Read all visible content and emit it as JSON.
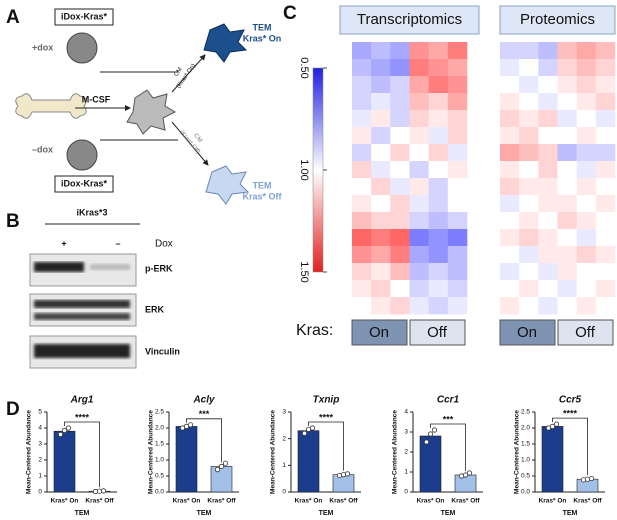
{
  "panel_a": {
    "letter": "A",
    "box_top": "iDox-Kras*",
    "plus_dox": "+dox",
    "tem_on": [
      "TEM",
      "Kras* On"
    ],
    "cm_on": [
      "CM",
      "(Kras* On)"
    ],
    "mcsf": "M-CSF",
    "minus_dox": "–dox",
    "cm_off": [
      "CM",
      "(Kras* Off)"
    ],
    "box_bottom": "iDox-Kras*",
    "tem_off": [
      "TEM",
      "Kras* Off"
    ]
  },
  "panel_b": {
    "letter": "B",
    "title": "iKras*3",
    "lanes": [
      "+",
      "–"
    ],
    "lane_label": "Dox",
    "bands": [
      "p-ERK",
      "ERK",
      "Vinculin"
    ]
  },
  "panel_c": {
    "letter": "C",
    "colorbar": {
      "lim": [
        0.5,
        1.5
      ],
      "ticks": [
        {
          "value": 0.5,
          "label": "0.50"
        },
        {
          "value": 1,
          "label": "1.00"
        },
        {
          "value": 1.5,
          "label": "1.50"
        }
      ]
    },
    "kras": {
      "label": "Kras:",
      "groups": [
        "On",
        "Off"
      ]
    },
    "heatmaps": [
      {
        "title": "Transcriptomics",
        "values": [
          [
            0.8,
            0.85,
            0.8,
            1.25,
            1.2,
            1.3
          ],
          [
            0.85,
            0.8,
            0.75,
            1.3,
            1.25,
            1.2
          ],
          [
            0.9,
            0.85,
            0.9,
            1.2,
            1.3,
            1.25
          ],
          [
            0.9,
            0.95,
            0.9,
            1.15,
            1.1,
            1.2
          ],
          [
            0.95,
            1.05,
            0.9,
            1.1,
            1.05,
            1.1
          ],
          [
            1.05,
            0.9,
            1.0,
            1.05,
            0.95,
            1.1
          ],
          [
            0.9,
            1.0,
            1.1,
            1.0,
            1.1,
            0.95
          ],
          [
            1.1,
            0.95,
            1.0,
            0.9,
            1.0,
            1.05
          ],
          [
            1.0,
            1.1,
            0.95,
            1.05,
            0.9,
            1.0
          ],
          [
            1.05,
            1.0,
            1.1,
            0.95,
            0.9,
            1.0
          ],
          [
            1.15,
            1.1,
            1.1,
            0.9,
            0.85,
            0.9
          ],
          [
            1.35,
            1.3,
            1.35,
            0.7,
            0.75,
            0.7
          ],
          [
            1.25,
            1.2,
            1.3,
            0.8,
            0.75,
            0.85
          ],
          [
            1.1,
            1.05,
            1.15,
            0.85,
            0.9,
            0.85
          ],
          [
            1.05,
            1.1,
            1.0,
            0.9,
            0.95,
            0.9
          ],
          [
            1.0,
            1.05,
            1.1,
            0.95,
            0.9,
            0.95
          ]
        ]
      },
      {
        "title": "Proteomics",
        "values": [
          [
            0.9,
            0.9,
            0.85,
            1.15,
            1.2,
            1.15
          ],
          [
            0.95,
            1.0,
            0.9,
            1.1,
            1.15,
            1.1
          ],
          [
            1.0,
            0.95,
            1.0,
            1.05,
            1.1,
            1.05
          ],
          [
            1.05,
            1.0,
            0.95,
            1.0,
            1.05,
            1.1
          ],
          [
            1.1,
            1.05,
            1.1,
            0.95,
            1.0,
            0.95
          ],
          [
            1.05,
            1.1,
            1.0,
            1.0,
            1.05,
            1.0
          ],
          [
            1.2,
            1.15,
            1.1,
            0.85,
            0.9,
            0.9
          ],
          [
            1.05,
            1.0,
            1.1,
            1.0,
            0.95,
            1.05
          ],
          [
            1.1,
            1.05,
            1.05,
            1.0,
            1.05,
            1.0
          ],
          [
            0.95,
            1.0,
            1.05,
            1.05,
            1.0,
            1.05
          ],
          [
            1.0,
            1.05,
            1.0,
            1.1,
            1.05,
            1.0
          ],
          [
            1.05,
            1.1,
            1.05,
            1.0,
            0.95,
            1.0
          ],
          [
            1.0,
            0.95,
            1.05,
            1.05,
            1.1,
            1.05
          ],
          [
            0.95,
            1.0,
            0.95,
            1.05,
            1.0,
            1.0
          ],
          [
            1.0,
            1.05,
            1.0,
            0.95,
            1.0,
            1.05
          ],
          [
            1.05,
            1.0,
            0.95,
            1.0,
            1.05,
            1.0
          ]
        ]
      }
    ]
  },
  "panel_d": {
    "letter": "D"
  },
  "chart_data": [
    {
      "type": "bar",
      "title": "Arg1",
      "ylabel": "Mean-Centered Abundance",
      "xlabel": "TEM",
      "categories": [
        "Kras* On",
        "Kras* Off"
      ],
      "values": [
        3.8,
        0.05
      ],
      "colors": [
        "#1c3d8c",
        "#a3c0e8"
      ],
      "points": [
        [
          3.6,
          3.85,
          4.0
        ],
        [
          0.03,
          0.05,
          0.07
        ]
      ],
      "ylim": [
        0,
        5
      ],
      "yticks": [
        0,
        1,
        2,
        3,
        4,
        5
      ],
      "annotation": "****"
    },
    {
      "type": "bar",
      "title": "Acly",
      "ylabel": "Mean-Centered Abundance",
      "xlabel": "TEM",
      "categories": [
        "Kras* On",
        "Kras* Off"
      ],
      "values": [
        2.05,
        0.8
      ],
      "colors": [
        "#1c3d8c",
        "#a3c0e8"
      ],
      "points": [
        [
          2.0,
          2.05,
          2.1
        ],
        [
          0.7,
          0.8,
          0.9
        ]
      ],
      "ylim": [
        0,
        2.5
      ],
      "yticks": [
        {
          "value": 0,
          "label": "0.0"
        },
        {
          "value": 0.5,
          "label": "0.5"
        },
        {
          "value": 1,
          "label": "1.0"
        },
        {
          "value": 1.5,
          "label": "1.5"
        },
        {
          "value": 2,
          "label": "2.0"
        },
        {
          "value": 2.5,
          "label": "2.5"
        }
      ],
      "annotation": "***"
    },
    {
      "type": "bar",
      "title": "Txnip",
      "ylabel": "Mean-Centered Abundance",
      "xlabel": "TEM",
      "categories": [
        "Kras* On",
        "Kras* Off"
      ],
      "values": [
        2.3,
        0.65
      ],
      "colors": [
        "#1c3d8c",
        "#a3c0e8"
      ],
      "points": [
        [
          2.2,
          2.35,
          2.4
        ],
        [
          0.62,
          0.65,
          0.68
        ]
      ],
      "ylim": [
        0,
        3
      ],
      "yticks": [
        0,
        1,
        2,
        3
      ],
      "annotation": "****"
    },
    {
      "type": "bar",
      "title": "Ccr1",
      "ylabel": "Mean-Centered Abundance",
      "xlabel": "TEM",
      "categories": [
        "Kras* On",
        "Kras* Off"
      ],
      "values": [
        2.8,
        0.85
      ],
      "colors": [
        "#1c3d8c",
        "#a3c0e8"
      ],
      "points": [
        [
          2.5,
          2.9,
          3.1
        ],
        [
          0.8,
          0.85,
          0.95
        ]
      ],
      "ylim": [
        0,
        4
      ],
      "yticks": [
        0,
        1,
        2,
        3,
        4
      ],
      "annotation": "***"
    },
    {
      "type": "bar",
      "title": "Ccr5",
      "ylabel": "Mean-Centered Abundance",
      "xlabel": "TEM",
      "categories": [
        "Kras* On",
        "Kras* Off"
      ],
      "values": [
        2.05,
        0.4
      ],
      "colors": [
        "#1c3d8c",
        "#a3c0e8"
      ],
      "points": [
        [
          2.0,
          2.05,
          2.12
        ],
        [
          0.38,
          0.4,
          0.42
        ]
      ],
      "ylim": [
        0,
        2.5
      ],
      "yticks": [
        {
          "value": 0,
          "label": "0.0"
        },
        {
          "value": 0.5,
          "label": "0.5"
        },
        {
          "value": 1,
          "label": "1.0"
        },
        {
          "value": 1.5,
          "label": "1.5"
        },
        {
          "value": 2,
          "label": "2.0"
        },
        {
          "value": 2.5,
          "label": "2.5"
        }
      ],
      "annotation": "****"
    }
  ]
}
